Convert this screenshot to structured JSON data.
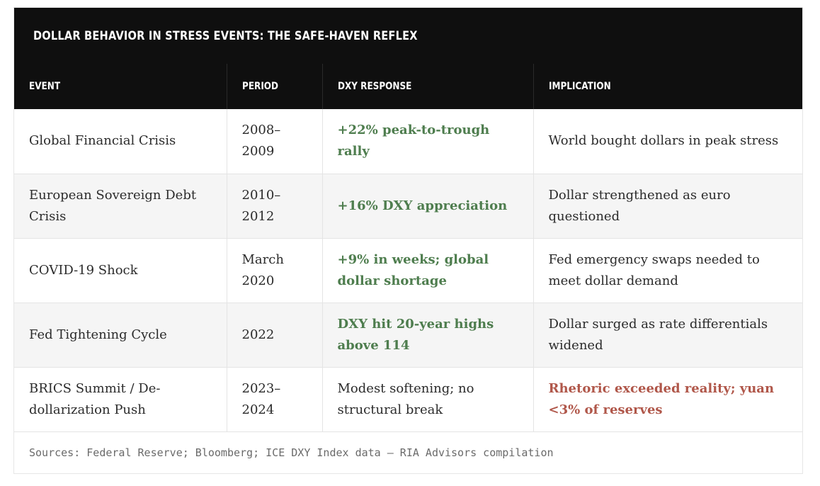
{
  "title": "DOLLAR BEHAVIOR IN STRESS EVENTS: THE SAFE-HAVEN REFLEX",
  "columns": [
    "EVENT",
    "PERIOD",
    "DXY RESPONSE",
    "IMPLICATION"
  ],
  "rows": [
    {
      "event": "Global Financial Crisis",
      "period": "2008–\n2009",
      "response": "+22% peak-to-trough rally",
      "implication": "World bought dollars in peak stress"
    },
    {
      "event": "European Sovereign Debt Crisis",
      "period": "2010–\n2012",
      "response": "+16% DXY appreciation",
      "implication": "Dollar strengthened as euro questioned"
    },
    {
      "event": "COVID-19 Shock",
      "period": "March 2020",
      "response": "+9% in weeks; global dollar shortage",
      "implication": "Fed emergency swaps needed to meet dollar demand"
    },
    {
      "event": "Fed Tightening Cycle",
      "period": "2022",
      "response": "DXY hit 20-year highs above 114",
      "implication": "Dollar surged as rate differentials widened"
    },
    {
      "event": "BRICS Summit / De-dollarization Push",
      "period": "2023–\n2024",
      "response": "Modest softening; no structural break",
      "implication": "Rhetoric exceeded reality; yuan <3% of reserves"
    }
  ],
  "footer": "Sources: Federal Reserve; Bloomberg; ICE DXY Index data — RIA Advisors compilation",
  "colors": {
    "header_bg": "#0f0f0f",
    "positive": "#4e7d4e",
    "negative": "#b0574a",
    "alt_row": "#f5f5f5"
  }
}
